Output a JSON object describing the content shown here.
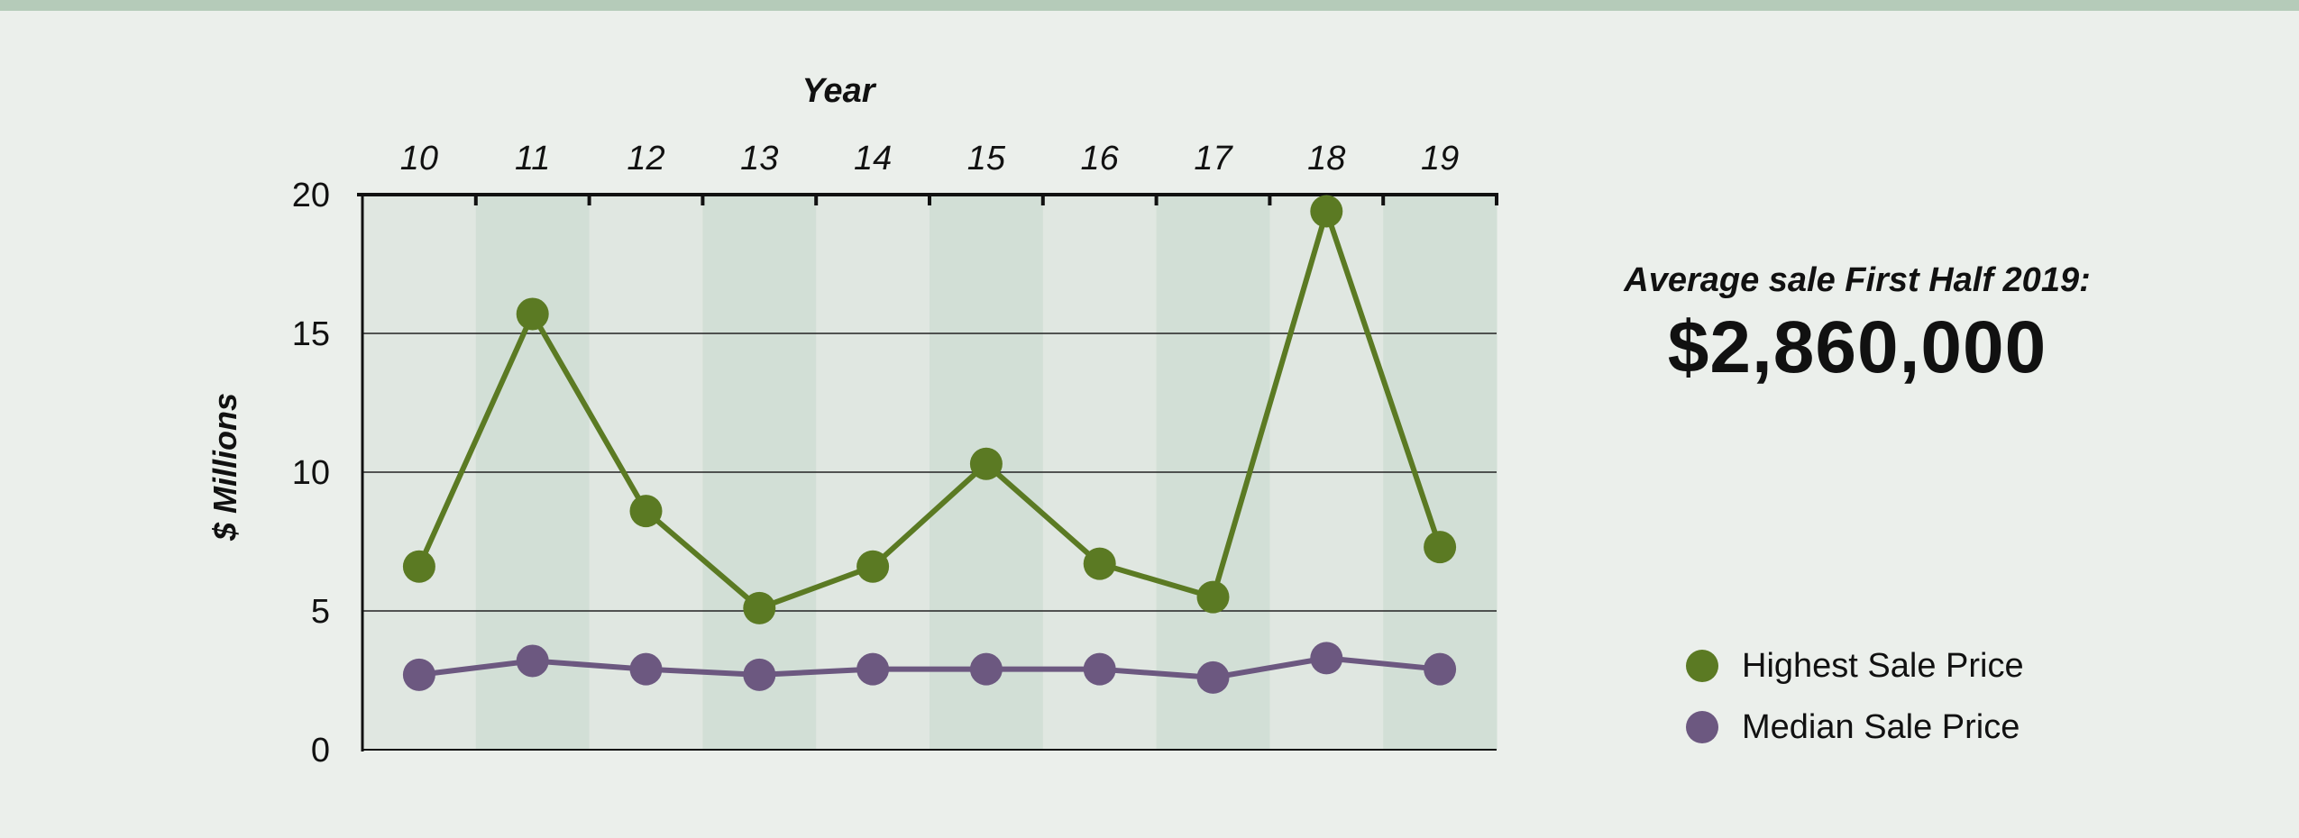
{
  "chart_data": {
    "type": "line",
    "categories": [
      "10",
      "11",
      "12",
      "13",
      "14",
      "15",
      "16",
      "17",
      "18",
      "19"
    ],
    "series": [
      {
        "name": "Highest Sale Price",
        "color": "#5b7a23",
        "values": [
          6.6,
          15.7,
          8.6,
          5.1,
          6.6,
          10.3,
          6.7,
          5.5,
          19.4,
          7.3
        ]
      },
      {
        "name": "Median Sale Price",
        "color": "#6c5880",
        "values": [
          2.7,
          3.2,
          2.9,
          2.7,
          2.9,
          2.9,
          2.9,
          2.6,
          3.3,
          2.9
        ]
      }
    ],
    "xlabel": "Year",
    "ylabel": "$ Millions",
    "ylim": [
      0,
      20
    ],
    "yticks": [
      "0",
      "5",
      "10",
      "15",
      "20"
    ],
    "grid": true,
    "legend_position": "right"
  },
  "summary": {
    "label": "Average sale First Half 2019:",
    "value": "$2,860,000"
  },
  "colors": {
    "background": "#ebefeb",
    "band_light": "#e0e7e1",
    "band_dark": "#d2dfd6",
    "top_bar": "#b5cbb9"
  }
}
